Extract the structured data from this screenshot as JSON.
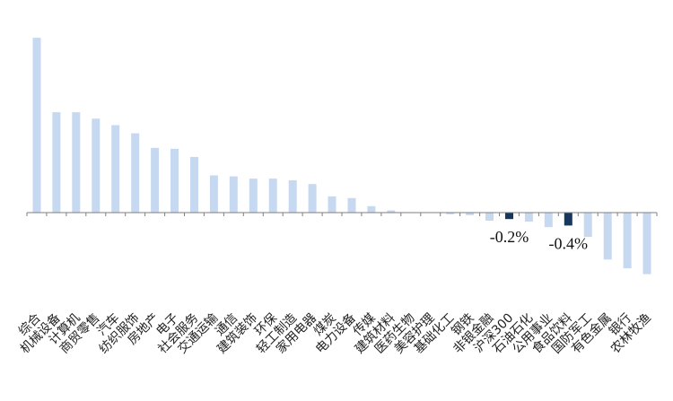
{
  "chart_data": {
    "type": "bar",
    "title": "",
    "xlabel": "",
    "ylabel": "",
    "ylim": [
      -2.0,
      5.8
    ],
    "grid": false,
    "legend": "none",
    "colors": {
      "default": "#c6d9f0",
      "highlight": "#17375e",
      "axis": "#7f7f7f"
    },
    "categories": [
      "综合",
      "机械设备",
      "计算机",
      "商贸零售",
      "汽车",
      "纺织服饰",
      "房地产",
      "电子",
      "社会服务",
      "交通运输",
      "通信",
      "建筑装饰",
      "环保",
      "轻工制造",
      "家用电器",
      "煤炭",
      "电力设备",
      "传媒",
      "建筑材料",
      "医药生物",
      "美容护理",
      "基础化工",
      "钢铁",
      "非银金融",
      "沪深300",
      "石油石化",
      "公用事业",
      "食品饮料",
      "国防军工",
      "有色金属",
      "银行",
      "农林牧渔"
    ],
    "values": [
      5.4,
      3.1,
      3.1,
      2.9,
      2.7,
      2.45,
      2.0,
      1.97,
      1.72,
      1.15,
      1.12,
      1.05,
      1.05,
      1.0,
      0.88,
      0.5,
      0.45,
      0.2,
      0.07,
      0.01,
      0.0,
      -0.05,
      -0.08,
      -0.25,
      -0.2,
      -0.28,
      -0.45,
      -0.4,
      -0.75,
      -1.45,
      -1.72,
      -1.9
    ],
    "highlight": [
      "沪深300",
      "食品饮料"
    ],
    "data_labels": [
      {
        "category": "沪深300",
        "text": "-0.2%"
      },
      {
        "category": "食品饮料",
        "text": "-0.4%"
      }
    ]
  }
}
